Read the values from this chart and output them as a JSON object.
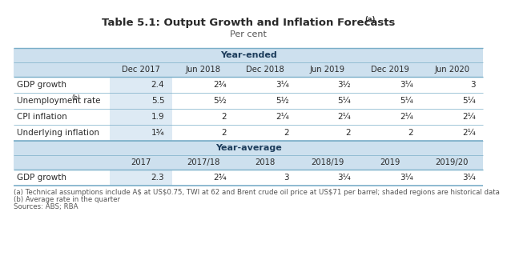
{
  "title_bold": "Table 5.1: Output Growth and Inflation Forecasts",
  "title_super": "(a)",
  "subtitle": "Per cent",
  "background_color": "#ffffff",
  "hdr_bg": "#cde0ee",
  "row_shade": "#ddeaf4",
  "row_white": "#ffffff",
  "line_color": "#7aaec8",
  "text_dark": "#2a2a2a",
  "text_mid": "#444444",
  "text_footnote": "#555555",
  "year_ended_header": "Year-ended",
  "year_ended_cols": [
    "Dec 2017",
    "Jun 2018",
    "Dec 2018",
    "Jun 2019",
    "Dec 2019",
    "Jun 2020"
  ],
  "year_ended_rows": [
    [
      "GDP growth",
      "2.4",
      "2¾",
      "3¼",
      "3½",
      "3¼",
      "3"
    ],
    [
      "Unemployment rate",
      "5.5",
      "5½",
      "5½",
      "5¼",
      "5¼",
      "5¼"
    ],
    [
      "CPI inflation",
      "1.9",
      "2",
      "2¼",
      "2¼",
      "2¼",
      "2¼"
    ],
    [
      "Underlying inflation",
      "1¾",
      "2",
      "2",
      "2",
      "2",
      "2¼"
    ]
  ],
  "row_superscripts": [
    null,
    "(b)",
    null,
    null
  ],
  "year_avg_header": "Year-average",
  "year_avg_cols": [
    "2017",
    "2017/18",
    "2018",
    "2018/19",
    "2019",
    "2019/20"
  ],
  "year_avg_rows": [
    [
      "GDP growth",
      "2.3",
      "2¾",
      "3",
      "3¼",
      "3¼",
      "3¼"
    ]
  ],
  "fn_a": "(a) Technical assumptions include A$ at US$0.75, TWI at 62 and Brent crude oil price at US$71 per barrel; shaded regions are historical data",
  "fn_b": "(b) Average rate in the quarter",
  "fn_c": "Sources: ABS; RBA"
}
